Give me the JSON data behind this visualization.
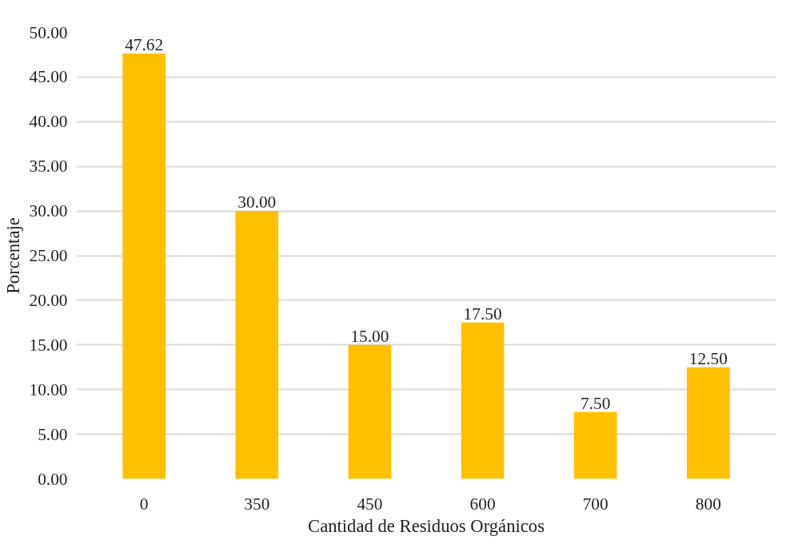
{
  "chart_data": {
    "type": "bar",
    "xlabel": "Cantidad de Residuos Orgánicos",
    "ylabel": "Porcentaje",
    "categories": [
      "0",
      "350",
      "450",
      "600",
      "700",
      "800"
    ],
    "values": [
      47.62,
      30.0,
      15.0,
      17.5,
      7.5,
      12.5
    ],
    "color": "#ffc000",
    "ylim": [
      0,
      50
    ],
    "yticks": [
      {
        "value": 0,
        "label": "0.00"
      },
      {
        "value": 5,
        "label": "5.00"
      },
      {
        "value": 10,
        "label": "10.00"
      },
      {
        "value": 15,
        "label": "15.00"
      },
      {
        "value": 20,
        "label": "20.00"
      },
      {
        "value": 25,
        "label": "25.00"
      },
      {
        "value": 30,
        "label": "30.00"
      },
      {
        "value": 35,
        "label": "35.00"
      },
      {
        "value": 40,
        "label": "40.00"
      },
      {
        "value": 45,
        "label": "45.00"
      },
      {
        "value": 50,
        "label": "50.00"
      }
    ],
    "value_labels": [
      "47.62",
      "30.00",
      "15.00",
      "17.50",
      "7.50",
      "12.50"
    ],
    "grid": "y"
  }
}
